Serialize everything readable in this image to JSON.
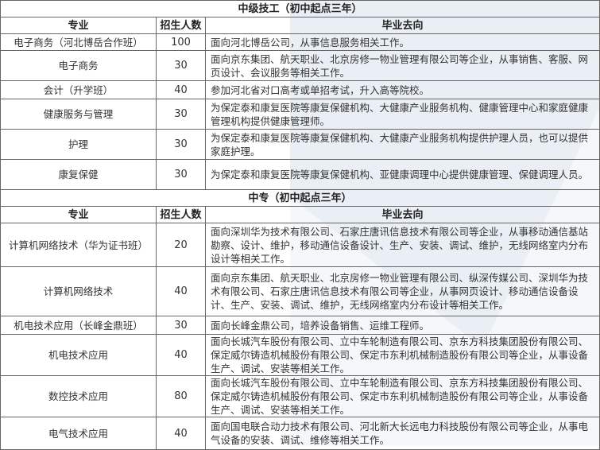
{
  "sections": [
    {
      "title": "中级技工（初中起点三年）",
      "headers": [
        "专业",
        "招生人数",
        "毕业去向"
      ],
      "rows": [
        {
          "major": "电子商务（河北博岳合作班）",
          "count": "100",
          "destination": "面向河北博岳公司，从事信息服务相关工作。"
        },
        {
          "major": "电子商务",
          "count": "30",
          "destination": "面向京东集团、航天职业、北京房修一物业管理有限公司等企业，从事销售、客服、网页设计、会议服务等相关工作。"
        },
        {
          "major": "会计（升学班）",
          "count": "40",
          "destination": "参加河北省对口高考或单招考试，升入高等院校。"
        },
        {
          "major": "健康服务与管理",
          "count": "30",
          "destination": "为保定泰和康复医院等康复保健机构、大健康产业服务机构、健康管理中心和家庭健康管理机构提供健康管理师。"
        },
        {
          "major": "护理",
          "count": "30",
          "destination": "为保定泰和康复医院等康复保健机构、大健康产业服务机构提供护理人员，也可以提供家庭护理。"
        },
        {
          "major": "康复保健",
          "count": "30",
          "destination": "为保定泰和康复医院等康复保健机构、亚健康调理中心提供健康管理、保健调理人员。"
        }
      ]
    },
    {
      "title": "中专（初中起点三年）",
      "headers": [
        "专业",
        "招生人数",
        "毕业去向"
      ],
      "rows": [
        {
          "major": "计算机网络技术（华为证书班）",
          "count": "20",
          "destination": "面向深圳华为技术有限公司、石家庄唐讯信息技术有限公司等企业，从事移动通信基站勘察、设计、维护，移动通信设备设计、生产、安装、调试、维护，无线网络室内分布设计等相关工作。"
        },
        {
          "major": "计算机网络技术",
          "count": "40",
          "destination": "面向京东集团、航天职业、北京房修一物业管理有限公司、纵深传媒公司、深圳华为技术有限公司、石家庄唐讯信息技术有限公司等企业，从事网页设计、移动通信设备设计、生产、安装、调试、维护，无线网络室内分布设计等相关工作。"
        },
        {
          "major": "机电技术应用（长峰金鼎班）",
          "count": "30",
          "destination": "面向长峰金鼎公司，培养设备销售、运维工程师。"
        },
        {
          "major": "机电技术应用",
          "count": "40",
          "destination": "面向长城汽车股份有限公司、立中车轮制造有限公司、京东方科技集团股份有限公司、保定威尔铸造机械股份有限公司、保定市东利机械制造股份有限公司等企业，从事设备生产、调试、安装等相关工作。"
        },
        {
          "major": "数控技术应用",
          "count": "80",
          "destination": "面向长城汽车股份有限公司、立中车轮制造有限公司、京东方科技集团股份有限公司、保定威尔铸造机械股份有限公司、保定市东利机械制造股份有限公司等企业，从事设备生产、调试、安装等相关工作。"
        },
        {
          "major": "电气技术应用",
          "count": "40",
          "destination": "面向国电联合动力技术有限公司、河北新大长远电力科技股份有限公司等企业，从事电气设备的安装、调试、维修等相关工作。"
        }
      ]
    }
  ]
}
